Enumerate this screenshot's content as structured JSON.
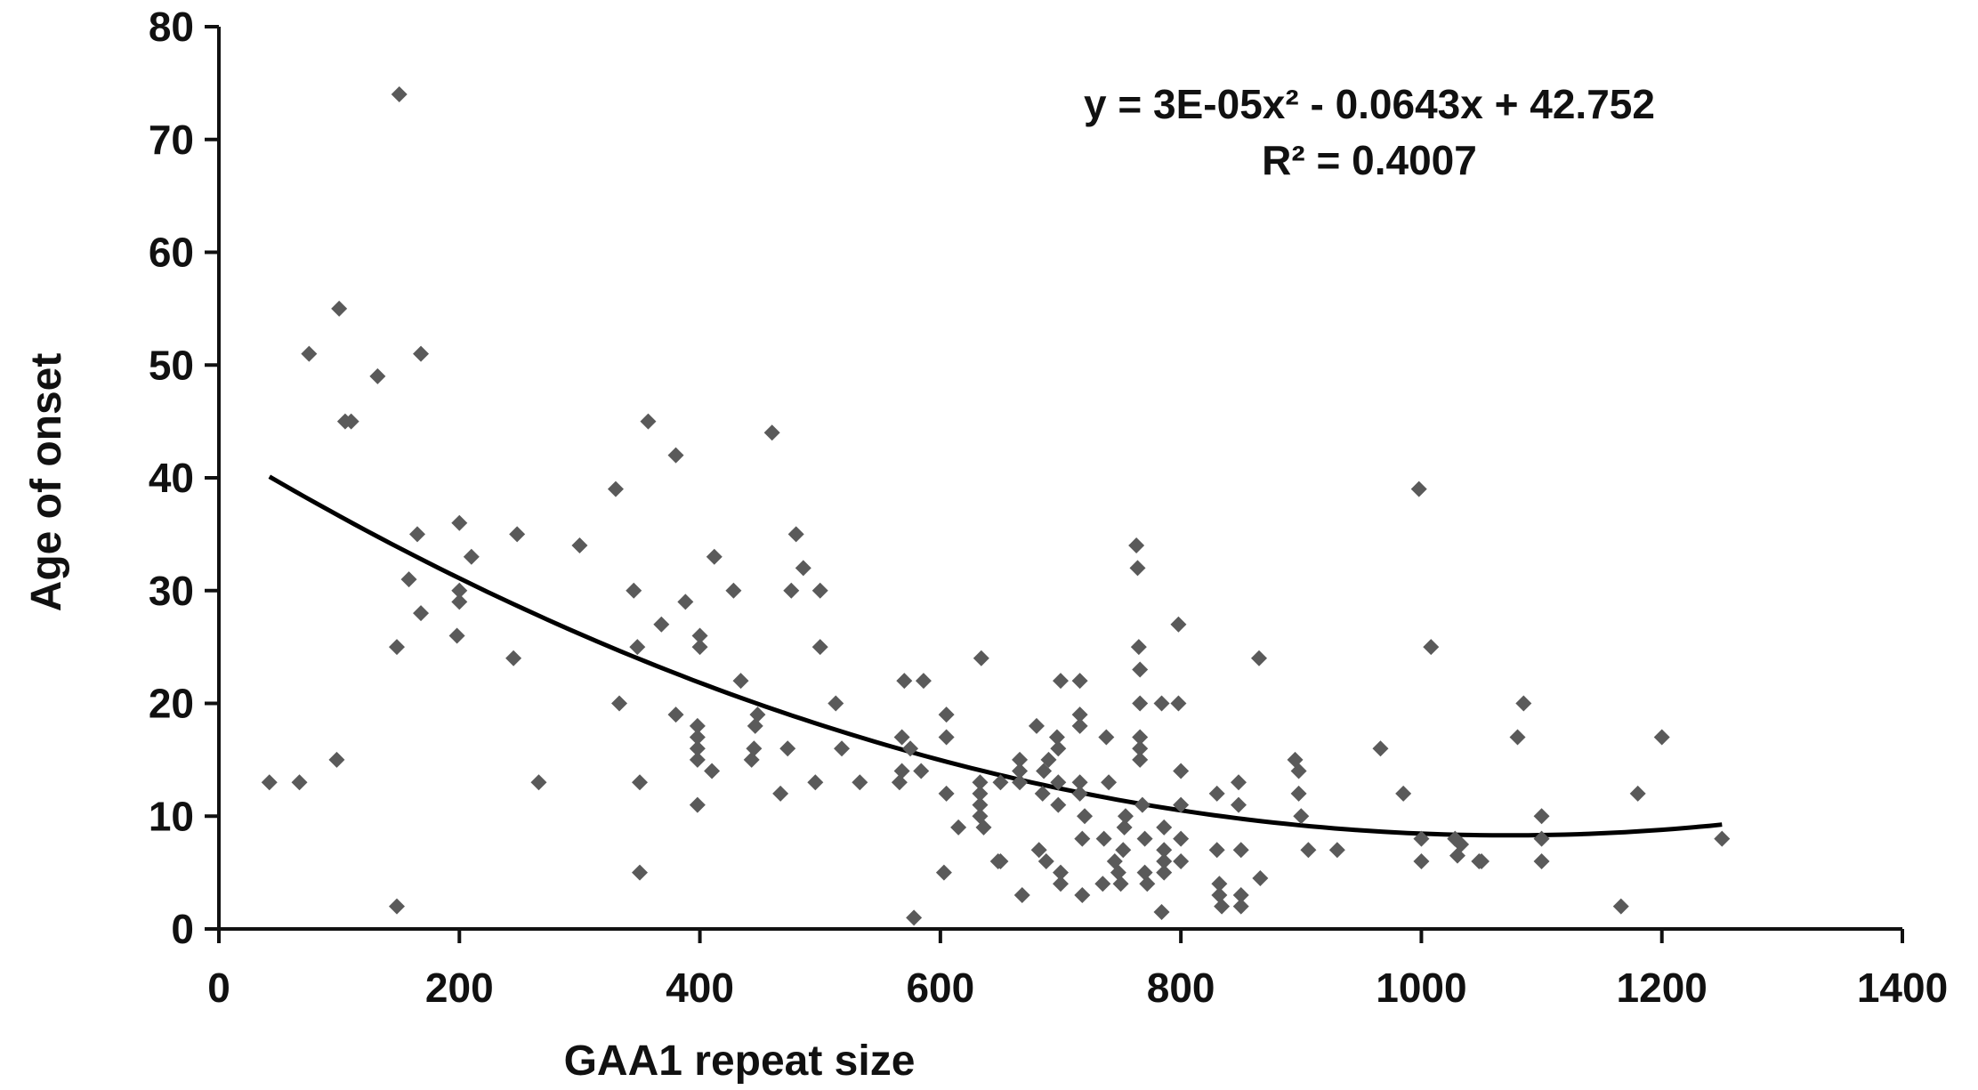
{
  "chart_data": {
    "type": "scatter",
    "xlabel": "GAA1 repeat size",
    "ylabel": "Age of onset",
    "xlim": [
      0,
      1400
    ],
    "ylim": [
      0,
      80
    ],
    "xticks": [
      0,
      200,
      400,
      600,
      800,
      1000,
      1200,
      1400
    ],
    "yticks": [
      0,
      10,
      20,
      30,
      40,
      50,
      60,
      70,
      80
    ],
    "xtick_labels": [
      "0",
      "200",
      "400",
      "600",
      "800",
      "1000",
      "1200",
      "1400"
    ],
    "ytick_labels": [
      "0",
      "10",
      "20",
      "30",
      "40",
      "50",
      "60",
      "70",
      "80"
    ],
    "grid": false,
    "marker_color": "#5a5a5a",
    "trendline_color": "#000000",
    "trendline": {
      "equation_text": "y = 3E-05x² - 0.0643x + 42.752",
      "r2_text": "R² = 0.4007",
      "coefficients": {
        "a": 3e-05,
        "b": -0.0643,
        "c": 42.752
      },
      "x_range": [
        42,
        1250
      ]
    },
    "points": [
      [
        42,
        13
      ],
      [
        67,
        13
      ],
      [
        75,
        51
      ],
      [
        98,
        15
      ],
      [
        100,
        55
      ],
      [
        105,
        45
      ],
      [
        110,
        45
      ],
      [
        132,
        49
      ],
      [
        148,
        2
      ],
      [
        148,
        25
      ],
      [
        150,
        74
      ],
      [
        158,
        31
      ],
      [
        165,
        35
      ],
      [
        168,
        28
      ],
      [
        168,
        51
      ],
      [
        198,
        26
      ],
      [
        200,
        29
      ],
      [
        200,
        30
      ],
      [
        200,
        36
      ],
      [
        210,
        33
      ],
      [
        245,
        24
      ],
      [
        248,
        35
      ],
      [
        266,
        13
      ],
      [
        300,
        34
      ],
      [
        330,
        39
      ],
      [
        333,
        20
      ],
      [
        345,
        30
      ],
      [
        348,
        25
      ],
      [
        350,
        5
      ],
      [
        350,
        13
      ],
      [
        357,
        45
      ],
      [
        368,
        27
      ],
      [
        380,
        42
      ],
      [
        380,
        19
      ],
      [
        388,
        29
      ],
      [
        398,
        11
      ],
      [
        398,
        15
      ],
      [
        398,
        16
      ],
      [
        398,
        17
      ],
      [
        398,
        18
      ],
      [
        400,
        25
      ],
      [
        400,
        26
      ],
      [
        410,
        14
      ],
      [
        412,
        33
      ],
      [
        428,
        30
      ],
      [
        434,
        22
      ],
      [
        443,
        15
      ],
      [
        445,
        16
      ],
      [
        446,
        18
      ],
      [
        448,
        19
      ],
      [
        460,
        44
      ],
      [
        467,
        12
      ],
      [
        473,
        16
      ],
      [
        476,
        30
      ],
      [
        480,
        35
      ],
      [
        486,
        32
      ],
      [
        496,
        13
      ],
      [
        500,
        25
      ],
      [
        500,
        30
      ],
      [
        513,
        20
      ],
      [
        518,
        16
      ],
      [
        533,
        13
      ],
      [
        566,
        13
      ],
      [
        568,
        14
      ],
      [
        568,
        17
      ],
      [
        570,
        22
      ],
      [
        575,
        16
      ],
      [
        578,
        1
      ],
      [
        584,
        14
      ],
      [
        586,
        22
      ],
      [
        603,
        5
      ],
      [
        605,
        12
      ],
      [
        605,
        19
      ],
      [
        605,
        17
      ],
      [
        615,
        9
      ],
      [
        633,
        10
      ],
      [
        633,
        11
      ],
      [
        633,
        12
      ],
      [
        633,
        13
      ],
      [
        634,
        24
      ],
      [
        636,
        9
      ],
      [
        648,
        6
      ],
      [
        650,
        13
      ],
      [
        650,
        6
      ],
      [
        666,
        13
      ],
      [
        666,
        14
      ],
      [
        666,
        15
      ],
      [
        668,
        3
      ],
      [
        680,
        18
      ],
      [
        682,
        7
      ],
      [
        685,
        12
      ],
      [
        686,
        14
      ],
      [
        688,
        6
      ],
      [
        690,
        15
      ],
      [
        697,
        17
      ],
      [
        698,
        16
      ],
      [
        698,
        13
      ],
      [
        698,
        11
      ],
      [
        700,
        4
      ],
      [
        700,
        5
      ],
      [
        700,
        22
      ],
      [
        716,
        22
      ],
      [
        716,
        19
      ],
      [
        716,
        18
      ],
      [
        716,
        13
      ],
      [
        716,
        12
      ],
      [
        718,
        3
      ],
      [
        718,
        8
      ],
      [
        720,
        10
      ],
      [
        735,
        4
      ],
      [
        736,
        8
      ],
      [
        738,
        17
      ],
      [
        740,
        13
      ],
      [
        745,
        6
      ],
      [
        748,
        5
      ],
      [
        750,
        4
      ],
      [
        752,
        7
      ],
      [
        753,
        9
      ],
      [
        754,
        10
      ],
      [
        763,
        34
      ],
      [
        764,
        32
      ],
      [
        765,
        25
      ],
      [
        766,
        23
      ],
      [
        766,
        20
      ],
      [
        766,
        17
      ],
      [
        766,
        16
      ],
      [
        766,
        15
      ],
      [
        768,
        11
      ],
      [
        770,
        8
      ],
      [
        770,
        5
      ],
      [
        772,
        4
      ],
      [
        784,
        20
      ],
      [
        786,
        9
      ],
      [
        786,
        7
      ],
      [
        786,
        6
      ],
      [
        786,
        5
      ],
      [
        784,
        1.5
      ],
      [
        798,
        27
      ],
      [
        798,
        20
      ],
      [
        800,
        14
      ],
      [
        800,
        11
      ],
      [
        800,
        8
      ],
      [
        800,
        6
      ],
      [
        830,
        12
      ],
      [
        830,
        7
      ],
      [
        832,
        4
      ],
      [
        832,
        3
      ],
      [
        834,
        2
      ],
      [
        848,
        11
      ],
      [
        848,
        13
      ],
      [
        850,
        7
      ],
      [
        850,
        3
      ],
      [
        850,
        2
      ],
      [
        865,
        24
      ],
      [
        866,
        4.5
      ],
      [
        895,
        15
      ],
      [
        898,
        14
      ],
      [
        898,
        12
      ],
      [
        900,
        10
      ],
      [
        906,
        7
      ],
      [
        930,
        7
      ],
      [
        966,
        16
      ],
      [
        985,
        12
      ],
      [
        998,
        39
      ],
      [
        1000,
        8
      ],
      [
        1000,
        6
      ],
      [
        1008,
        25
      ],
      [
        1028,
        8
      ],
      [
        1030,
        6.5
      ],
      [
        1033,
        7.5
      ],
      [
        1048,
        6
      ],
      [
        1050,
        6
      ],
      [
        1080,
        17
      ],
      [
        1085,
        20
      ],
      [
        1100,
        10
      ],
      [
        1100,
        8
      ],
      [
        1100,
        6
      ],
      [
        1166,
        2
      ],
      [
        1180,
        12
      ],
      [
        1200,
        17
      ],
      [
        1250,
        8
      ]
    ]
  }
}
